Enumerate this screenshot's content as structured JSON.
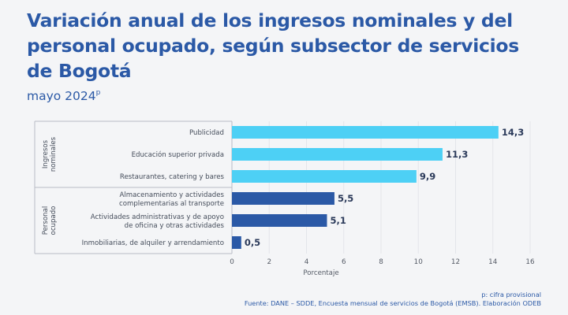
{
  "title": "Variación anual de los ingresos nominales y del personal ocupado, según subsector de servicios de Bogotá",
  "subtitle": "mayo 2024",
  "subtitle_sup": "p",
  "footnote": "p: cifra provisional",
  "source": "Fuente: DANE – SDDE, Encuesta mensual de servicios de Bogotá (EMSB). Elaboración ODEB",
  "colors": {
    "ingresos": "#4dd0f5",
    "personal": "#2b59a6",
    "title": "#2b59a6"
  },
  "chart_data": {
    "type": "bar",
    "orientation": "horizontal",
    "xlabel": "Porcentaje",
    "xlim": [
      0,
      16
    ],
    "xticks": [
      "0",
      "2",
      "4",
      "6",
      "8",
      "10",
      "12",
      "14",
      "16"
    ],
    "grid": true,
    "groups": [
      {
        "name": "Ingresos nominales",
        "color": "#4dd0f5",
        "categories": [
          [
            "Publicidad"
          ],
          [
            "Educación superior privada"
          ],
          [
            "Restaurantes, catering y bares"
          ]
        ],
        "values": [
          14.3,
          11.3,
          9.9
        ],
        "labels": [
          "14,3",
          "11,3",
          "9,9"
        ]
      },
      {
        "name": "Personal ocupado",
        "color": "#2b59a6",
        "categories": [
          [
            "Almacenamiento y actividades",
            "complementarias al transporte"
          ],
          [
            "Actividades administrativas y de apoyo",
            "de oficina y otras actividades"
          ],
          [
            "Inmobiliarias, de alquiler y arrendamiento"
          ]
        ],
        "values": [
          5.5,
          5.1,
          0.5
        ],
        "labels": [
          "5,5",
          "5,1",
          "0,5"
        ]
      }
    ]
  }
}
